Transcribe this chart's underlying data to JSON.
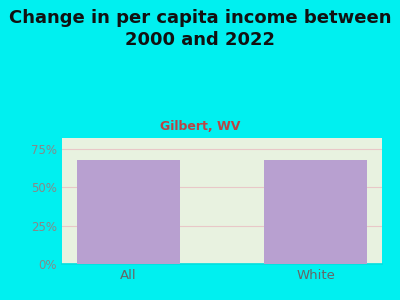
{
  "title": "Change in per capita income between\n2000 and 2022",
  "subtitle": "Gilbert, WV",
  "categories": [
    "All",
    "White"
  ],
  "values": [
    68,
    68
  ],
  "bar_color": "#b8a0d0",
  "title_fontsize": 13,
  "subtitle_fontsize": 9,
  "subtitle_color": "#bb4444",
  "title_color": "#111111",
  "background_color": "#00f0f0",
  "plot_bg_color": "#e8f2e0",
  "yticks": [
    0,
    25,
    50,
    75
  ],
  "ytick_labels": [
    "0%",
    "25%",
    "50%",
    "75%"
  ],
  "ylim": [
    0,
    82
  ],
  "tick_color": "#888888",
  "xtick_color": "#666666",
  "grid_color": "#e8c8c8",
  "axis_color": "#00e0e0"
}
